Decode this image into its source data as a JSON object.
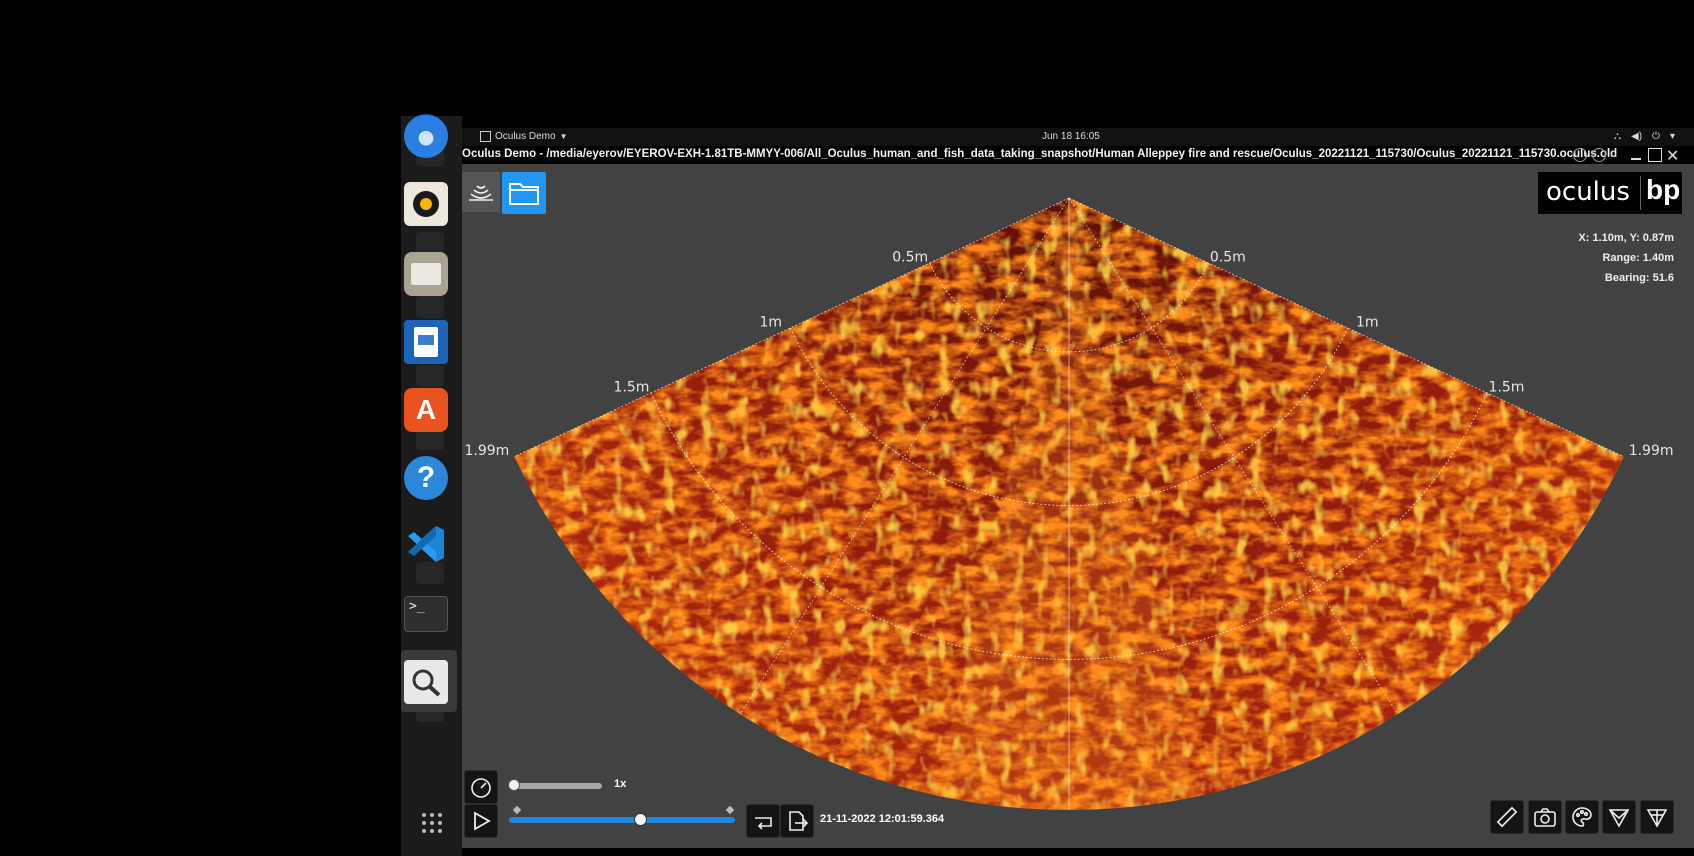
{
  "top_bar": {
    "app_menu": "Oculus Demo",
    "clock": "Jun 18  16:05"
  },
  "window": {
    "title": "Oculus Demo - /media/eyerov/EYEROV-EXH-1.81TB-MMYY-006/All_Oculus_human_and_fish_data_taking_snapshot/Human Alleppey fire and rescue/Oculus_20221121_115730/Oculus_20221121_115730.oculus.old"
  },
  "brand": {
    "name": "oculus",
    "partner": "bp"
  },
  "readout": {
    "xy": "X: 1.10m, Y: 0.87m",
    "range": "Range: 1.40m",
    "bearing": "Bearing: 51.6"
  },
  "sonar": {
    "ring_labels": [
      "0.5m",
      "1m",
      "1.5m",
      "1.99m"
    ],
    "field_of_view_deg": 130,
    "max_range_m": 1.99
  },
  "playback": {
    "speed_label": "1x",
    "speed_fraction": 0.0,
    "position_fraction": 0.58,
    "timestamp": "21-11-2022 12:01:59.364"
  },
  "dock": {
    "icons": [
      "thunderbird-icon",
      "firefox-icon",
      "rhythmbox-icon",
      "files-icon",
      "writer-icon",
      "app-center-icon",
      "help-icon",
      "vscode-icon",
      "terminal-icon",
      "image-viewer-icon",
      "show-apps-icon"
    ]
  },
  "colors": {
    "accent": "#1e88e5",
    "panel": "#424242",
    "sonar_low": "#2a0606",
    "sonar_high": "#ffd54a"
  }
}
